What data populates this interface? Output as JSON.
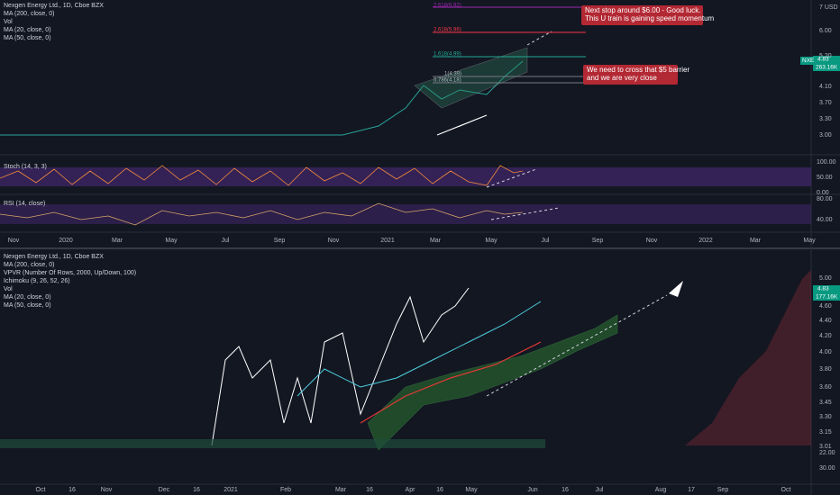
{
  "top_panel": {
    "legend": [
      "Nexgen Energy Ltd., 1D, Cboe BZX",
      "MA (200, close, 0)",
      "Vol",
      "MA (20, close, 0)",
      "MA (50, close, 0)"
    ],
    "price_axis": [
      "7 USD",
      "6.00",
      "5.20",
      "4.10",
      "3.70",
      "3.30",
      "3.00"
    ],
    "price_tag": {
      "symbol": "NXE",
      "price": "4.83",
      "volume": "263.16K"
    },
    "fib_labels": [
      "2.618(6.92)",
      "2.618(5.96)",
      "1.618(4.99)",
      "1(4.39)",
      "0.786(4.18)"
    ],
    "annotations": [
      [
        "Next stop around $6.00 - Good luck.",
        "This U train is gaining speed momentum"
      ],
      [
        "We need to cross that $5 barrier",
        "and we are very close"
      ]
    ],
    "stoch": {
      "label": "Stoch (14, 3, 3)",
      "axis": [
        "100.00",
        "50.00",
        "0.00"
      ]
    },
    "rsi": {
      "label": "RSI (14, close)",
      "axis": [
        "80.00",
        "40.00"
      ]
    },
    "time_axis": [
      "Nov",
      "2020",
      "Mar",
      "May",
      "Jul",
      "Sep",
      "Nov",
      "2021",
      "Mar",
      "May",
      "Jul",
      "Sep",
      "Nov",
      "2022",
      "Mar",
      "May"
    ]
  },
  "bottom_panel": {
    "legend": [
      "Nexgen Energy Ltd., 1D, Cboe BZX",
      "MA (200, close, 0)",
      "VPVR (Number Of Rows, 2000, Up/Down, 100)",
      "Ichimoku (9, 26, 52, 26)",
      "Vol",
      "MA (20, close, 0)",
      "MA (50, close, 0)"
    ],
    "price_axis": [
      "5.00",
      "4.60",
      "4.40",
      "4.20",
      "4.00",
      "3.80",
      "3.60",
      "3.45",
      "3.30",
      "3.15",
      "3.01",
      "22.00",
      "30.00"
    ],
    "price_tag": {
      "price": "4.83",
      "volume": "177.16K"
    },
    "time_axis": [
      "Oct",
      "16",
      "Nov",
      "Dec",
      "16",
      "2021",
      "Feb",
      "Mar",
      "16",
      "Apr",
      "16",
      "May",
      "Jun",
      "16",
      "Jul",
      "Aug",
      "17",
      "Sep",
      "Oct"
    ]
  }
}
